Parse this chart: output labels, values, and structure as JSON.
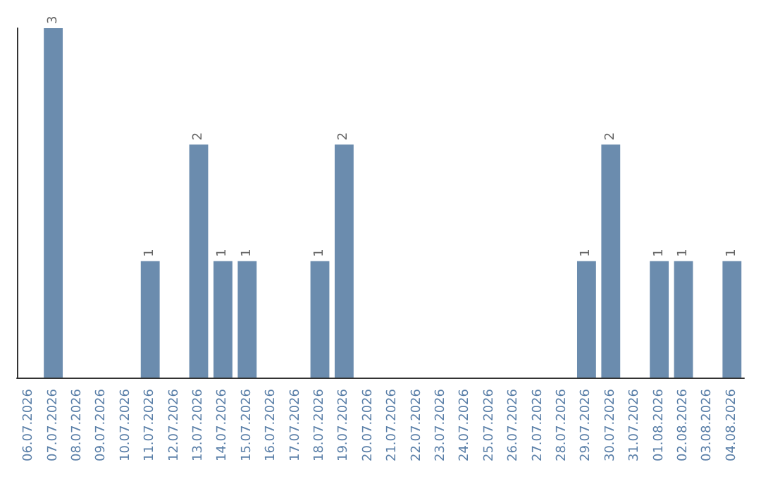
{
  "chart_data": {
    "type": "bar",
    "categories": [
      "06.07.2026",
      "07.07.2026",
      "08.07.2026",
      "09.07.2026",
      "10.07.2026",
      "11.07.2026",
      "12.07.2026",
      "13.07.2026",
      "14.07.2026",
      "15.07.2026",
      "16.07.2026",
      "17.07.2026",
      "18.07.2026",
      "19.07.2026",
      "20.07.2026",
      "21.07.2026",
      "22.07.2026",
      "23.07.2026",
      "24.07.2026",
      "25.07.2026",
      "26.07.2026",
      "27.07.2026",
      "28.07.2026",
      "29.07.2026",
      "30.07.2026",
      "31.07.2026",
      "01.08.2026",
      "02.08.2026",
      "03.08.2026",
      "04.08.2026"
    ],
    "values": [
      0,
      3,
      0,
      0,
      0,
      1,
      0,
      2,
      1,
      1,
      0,
      0,
      1,
      2,
      0,
      0,
      0,
      0,
      0,
      0,
      0,
      0,
      0,
      1,
      2,
      0,
      1,
      1,
      0,
      1
    ],
    "value_labels": [
      null,
      "3",
      null,
      null,
      null,
      "1",
      null,
      "2",
      "1",
      "1",
      null,
      null,
      "1",
      "2",
      null,
      null,
      null,
      null,
      null,
      null,
      null,
      null,
      null,
      "1",
      "2",
      null,
      "1",
      "1",
      null,
      "1"
    ],
    "color": "#6b8cae",
    "ylim": [
      0,
      3
    ],
    "tick_labels": "x"
  }
}
